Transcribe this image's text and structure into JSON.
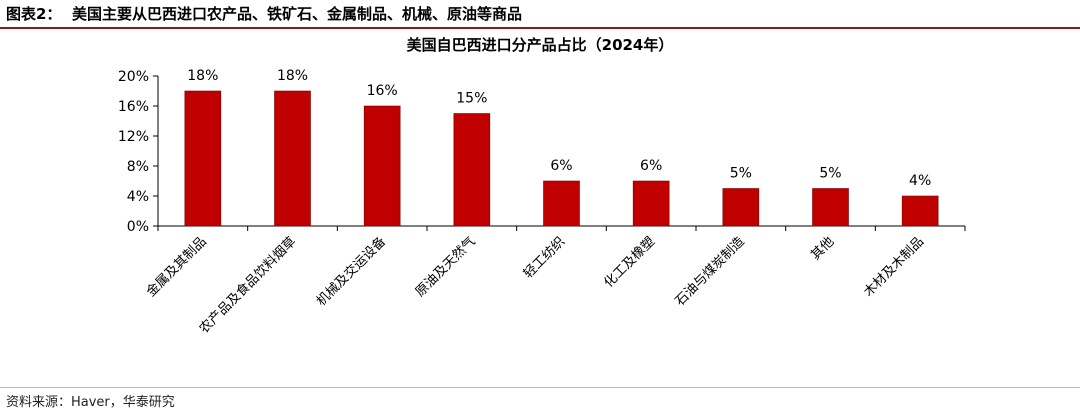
{
  "header": {
    "figure_number": "图表2：",
    "caption": "美国主要从巴西进口农产品、铁矿石、金属制品、机械、原油等商品"
  },
  "chart_data": {
    "type": "bar",
    "title": "美国自巴西进口分产品占比（2024年）",
    "categories": [
      "金属及其制品",
      "农产品及食品饮料烟草",
      "机械及交运设备",
      "原油及天然气",
      "轻工纺织",
      "化工及橡塑",
      "石油与煤炭制造",
      "其他",
      "木材及木制品"
    ],
    "values": [
      18,
      18,
      16,
      15,
      6,
      6,
      5,
      5,
      4
    ],
    "data_labels": [
      "18%",
      "18%",
      "16%",
      "15%",
      "6%",
      "6%",
      "5%",
      "5%",
      "4%"
    ],
    "ylim": [
      0,
      20
    ],
    "yticks": [
      0,
      4,
      8,
      12,
      16,
      20
    ],
    "ytick_labels": [
      "0%",
      "4%",
      "8%",
      "12%",
      "16%",
      "20%"
    ],
    "xlabel": "",
    "ylabel": "",
    "grid": false,
    "bar_color": "#c00000"
  },
  "footer": {
    "source": "资料来源：Haver，华泰研究"
  }
}
